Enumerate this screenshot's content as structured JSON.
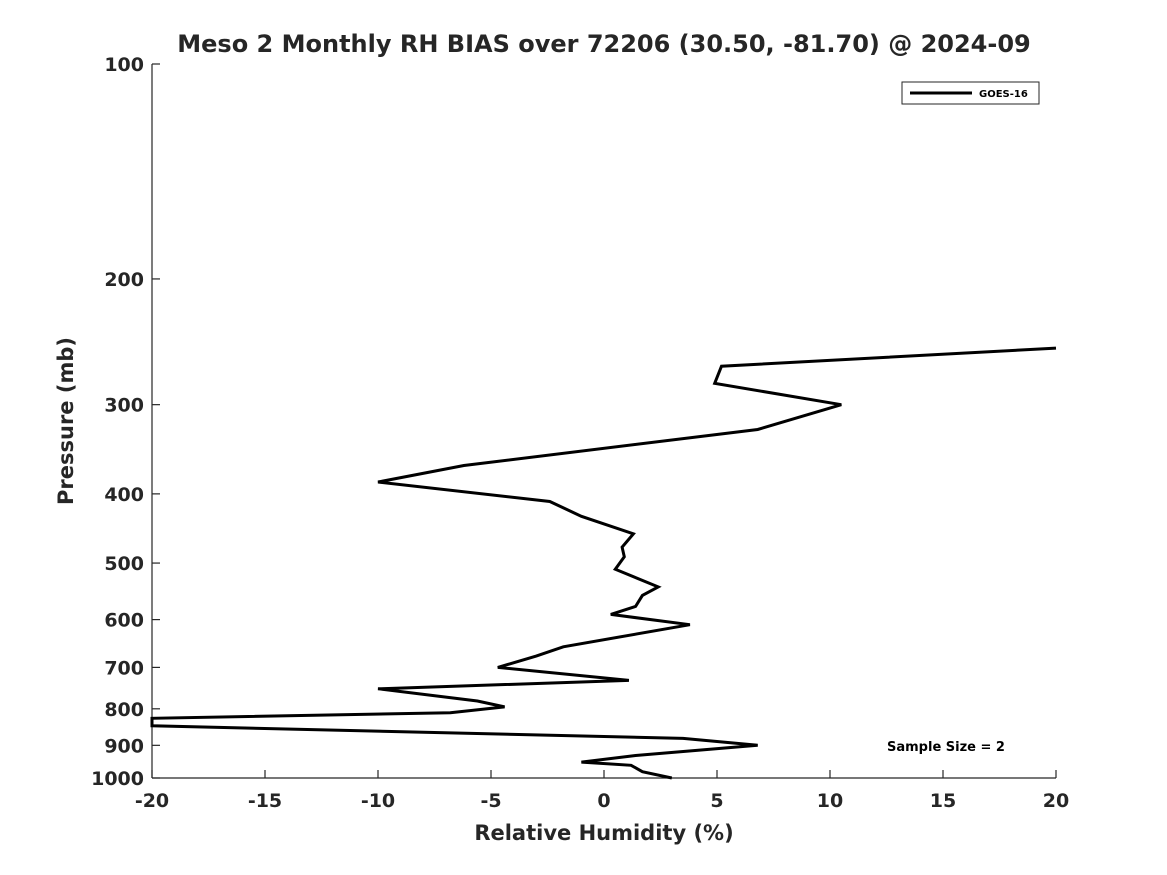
{
  "chart_data": {
    "type": "line",
    "title": "Meso 2 Monthly RH BIAS over 72206 (30.50, -81.70) @ 2024-09",
    "xlabel": "Relative Humidity (%)",
    "ylabel": "Pressure (mb)",
    "xlim": [
      -20,
      20
    ],
    "ylim": [
      100,
      1000
    ],
    "y_scale": "log",
    "y_reversed": true,
    "x_ticks": [
      -20,
      -15,
      -10,
      -5,
      0,
      5,
      10,
      15,
      20
    ],
    "y_ticks": [
      100,
      200,
      300,
      400,
      500,
      600,
      700,
      800,
      900,
      1000
    ],
    "grid": false,
    "legend": "top-right",
    "annotation": "Sample Size = 2",
    "series": [
      {
        "name": "GOES-16",
        "color": "#000000",
        "x": [
          3.0,
          1.7,
          1.2,
          -1.0,
          1.4,
          6.8,
          3.5,
          -20.0,
          -20.0,
          -6.8,
          -4.4,
          -5.6,
          -10.0,
          1.1,
          -4.7,
          -3.0,
          -1.8,
          3.8,
          0.3,
          1.4,
          1.7,
          2.4,
          0.5,
          0.9,
          0.8,
          1.3,
          -1.0,
          -2.4,
          -10.0,
          -6.2,
          6.8,
          10.5,
          4.9,
          5.2,
          20.0
        ],
        "y": [
          1000,
          980,
          960,
          950,
          930,
          900,
          880,
          845,
          825,
          810,
          795,
          780,
          750,
          730,
          700,
          675,
          655,
          610,
          590,
          575,
          555,
          540,
          510,
          490,
          475,
          455,
          430,
          410,
          385,
          365,
          325,
          300,
          280,
          265,
          250
        ]
      }
    ]
  }
}
